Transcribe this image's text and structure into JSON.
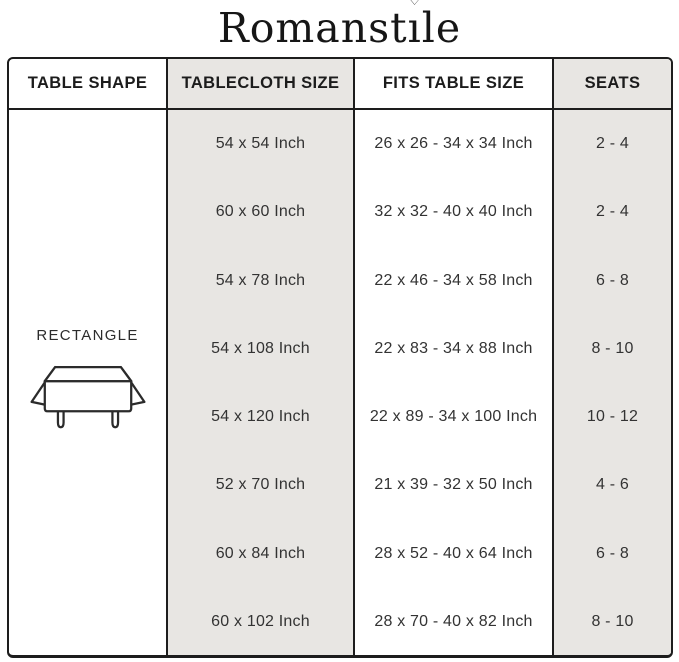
{
  "brand": {
    "name": "Romanstile",
    "display_part1": "Romanst",
    "display_dotless_i": "ı",
    "display_part2": "le",
    "heart_icon": "♡"
  },
  "colors": {
    "grid_line": "#1d1d1d",
    "gray_fill": "#e8e6e3",
    "header_text": "#1c1c1c",
    "body_text": "#333333"
  },
  "chart_data": {
    "type": "table",
    "title": "Romanstile tablecloth size chart",
    "columns": [
      "TABLE SHAPE",
      "TABLECLOTH SIZE",
      "FITS TABLE SIZE",
      "SEATS"
    ],
    "shape": "RECTANGLE",
    "rows": [
      {
        "tablecloth_size": "54 x 54 Inch",
        "fits_table_size": "26 x 26 - 34 x 34 Inch",
        "seats": "2 - 4"
      },
      {
        "tablecloth_size": "60 x 60 Inch",
        "fits_table_size": "32 x 32 - 40 x 40 Inch",
        "seats": "2 - 4"
      },
      {
        "tablecloth_size": "54 x 78 Inch",
        "fits_table_size": "22 x 46 - 34 x 58 Inch",
        "seats": "6 - 8"
      },
      {
        "tablecloth_size": "54 x 108 Inch",
        "fits_table_size": "22 x 83 - 34 x 88 Inch",
        "seats": "8 - 10"
      },
      {
        "tablecloth_size": "54 x 120 Inch",
        "fits_table_size": "22 x 89 - 34 x 100 Inch",
        "seats": "10 - 12"
      },
      {
        "tablecloth_size": "52 x 70 Inch",
        "fits_table_size": "21 x 39 - 32 x 50 Inch",
        "seats": "4 - 6"
      },
      {
        "tablecloth_size": "60 x 84 Inch",
        "fits_table_size": "28 x 52 - 40 x 64 Inch",
        "seats": "6 - 8"
      },
      {
        "tablecloth_size": "60 x 102 Inch",
        "fits_table_size": "28 x 70 - 40 x 82 Inch",
        "seats": "8 - 10"
      }
    ]
  }
}
